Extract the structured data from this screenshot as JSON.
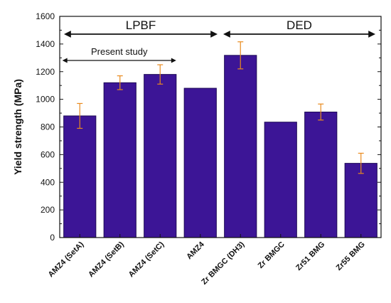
{
  "chart_data": {
    "type": "bar",
    "categories": [
      "AMZ4 (SetA)",
      "AMZ4 (SetB)",
      "AMZ4 (SetC)",
      "AMZ4",
      "Zr BMGC (DH3)",
      "Zr BMGC",
      "Zr51 BMG",
      "Zr55 BMG"
    ],
    "values": [
      880,
      1120,
      1180,
      1080,
      1318,
      835,
      908,
      537
    ],
    "errors": [
      90,
      50,
      70,
      null,
      98,
      null,
      58,
      73
    ],
    "ylabel": "Yield strength (MPa)",
    "xlabel": "",
    "ylim": [
      0,
      1600
    ],
    "yticks": [
      0,
      200,
      400,
      600,
      800,
      1000,
      1200,
      1400,
      1600
    ],
    "grid": false,
    "annotations": [
      {
        "text": "LPBF",
        "from_category": 0,
        "to_category": 3
      },
      {
        "text": "DED",
        "from_category": 4,
        "to_category": 7
      },
      {
        "text": "Present study",
        "from_category": 0,
        "to_category": 2
      }
    ]
  },
  "colors": {
    "bar_fill": "#3c1596",
    "bar_stroke": "#1d0a55",
    "error_bar": "#e98a1e",
    "axis": "#111111"
  }
}
